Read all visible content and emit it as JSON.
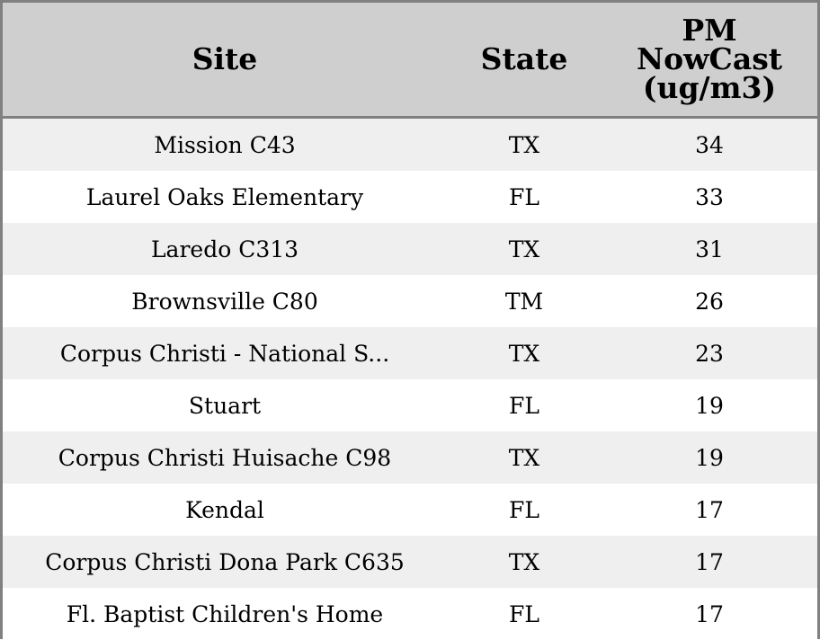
{
  "chart_data": {
    "type": "table",
    "columns": [
      "Site",
      "State",
      "PM\nNowCast\n(ug/m3)"
    ],
    "rows": [
      {
        "site": "Mission C43",
        "state": "TX",
        "pm": "34"
      },
      {
        "site": "Laurel Oaks Elementary",
        "state": "FL",
        "pm": "33"
      },
      {
        "site": "Laredo C313",
        "state": "TX",
        "pm": "31"
      },
      {
        "site": "Brownsville C80",
        "state": "TM",
        "pm": "26"
      },
      {
        "site": "Corpus Christi - National S...",
        "state": "TX",
        "pm": "23"
      },
      {
        "site": "Stuart",
        "state": "FL",
        "pm": "19"
      },
      {
        "site": "Corpus Christi Huisache C98",
        "state": "TX",
        "pm": "19"
      },
      {
        "site": "Kendal",
        "state": "FL",
        "pm": "17"
      },
      {
        "site": "Corpus Christi Dona Park C635",
        "state": "TX",
        "pm": "17"
      },
      {
        "site": "Fl. Baptist Children's Home",
        "state": "FL",
        "pm": "17"
      }
    ]
  },
  "colors": {
    "header_bg": "#cfcfcf",
    "row_alt_bg": "#efefef",
    "row_bg": "#ffffff",
    "border": "#808080"
  }
}
